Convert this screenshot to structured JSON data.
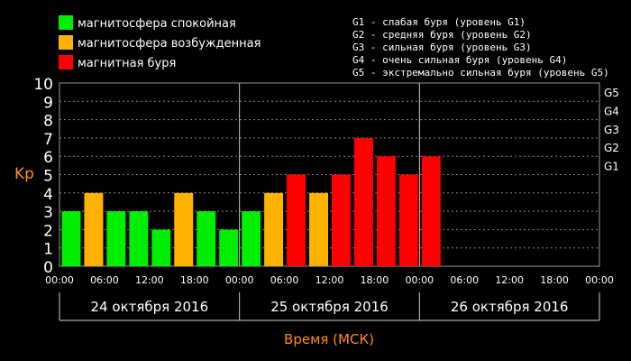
{
  "legend": [
    {
      "label": "магнитосфера спокойная",
      "color": "#00ee00"
    },
    {
      "label": "магнитосфера возбужденная",
      "color": "#ffb300"
    },
    {
      "label": "магнитная буря",
      "color": "#ff0000"
    }
  ],
  "storm_scale": [
    "G1 - слабая буря (уровень G1)",
    "G2 - средняя буря (уровень G2)",
    "G3 - сильная буря (уровень G3)",
    "G4 - очень сильная буря (уровень G4)",
    "G5 - экстремально сильная буря (уровень G5)"
  ],
  "chart_data": {
    "type": "bar",
    "ylabel": "Kp",
    "xlabel": "Время (МСК)",
    "ylim": [
      0,
      10
    ],
    "yticks": [
      0,
      1,
      2,
      3,
      4,
      5,
      6,
      7,
      8,
      9,
      10
    ],
    "g_levels": [
      {
        "label": "G1",
        "kp": 5
      },
      {
        "label": "G2",
        "kp": 6
      },
      {
        "label": "G3",
        "kp": 7
      },
      {
        "label": "G4",
        "kp": 8
      },
      {
        "label": "G5",
        "kp": 9
      }
    ],
    "xticks": [
      "00:00",
      "06:00",
      "12:00",
      "18:00",
      "00:00",
      "06:00",
      "12:00",
      "18:00",
      "00:00",
      "06:00",
      "12:00",
      "18:00",
      "00:00"
    ],
    "days": [
      "24 октября 2016",
      "25 октября 2016",
      "26 октября 2016"
    ],
    "interval_hours": 3,
    "values": [
      3,
      4,
      3,
      3,
      2,
      4,
      3,
      2,
      3,
      4,
      5,
      4,
      5,
      7,
      6,
      5,
      6
    ],
    "colors": {
      "quiet": "#00ee00",
      "active": "#ffb300",
      "storm": "#ff0000"
    },
    "grid": true
  }
}
